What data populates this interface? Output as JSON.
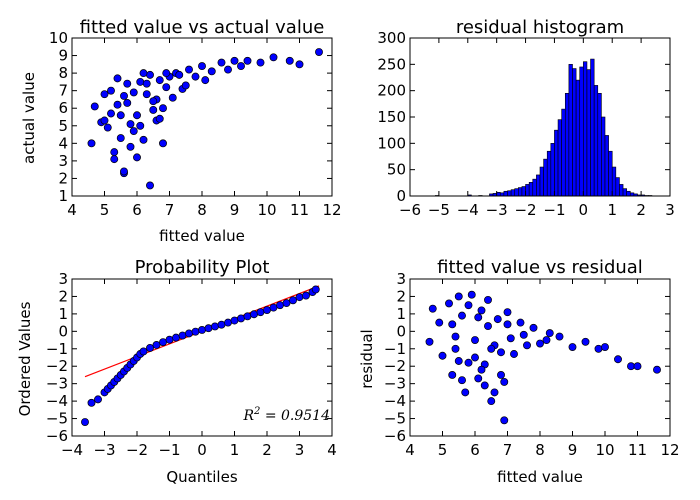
{
  "chart_data": [
    {
      "id": "fitted_vs_actual",
      "type": "scatter",
      "title": "fitted value vs actual value",
      "xlabel": "fitted value",
      "ylabel": "actual value",
      "xlim": [
        4,
        12
      ],
      "ylim": [
        1,
        10
      ],
      "xticks": [
        4,
        5,
        6,
        7,
        8,
        9,
        10,
        11,
        12
      ],
      "yticks": [
        1,
        2,
        3,
        4,
        5,
        6,
        7,
        8,
        9,
        10
      ],
      "x": [
        4.6,
        4.7,
        4.9,
        5.0,
        5.1,
        5.2,
        5.3,
        5.4,
        5.5,
        5.6,
        5.7,
        5.8,
        5.9,
        6.0,
        6.1,
        6.2,
        6.3,
        6.4,
        6.5,
        6.6,
        6.7,
        6.8,
        6.9,
        7.0,
        7.2,
        7.4,
        7.6,
        7.8,
        8.0,
        8.3,
        8.6,
        9.0,
        9.4,
        9.8,
        10.2,
        10.7,
        11.0,
        11.6,
        5.3,
        5.6,
        5.9,
        6.2,
        6.5,
        5.8,
        6.1,
        6.4,
        6.8,
        5.5,
        6.0,
        6.6,
        7.1,
        7.5,
        5.2,
        5.7,
        6.3,
        6.9,
        7.3,
        8.1,
        8.8,
        9.2,
        5.4,
        6.7,
        5.0,
        5.6
      ],
      "y": [
        4.0,
        6.1,
        5.2,
        6.8,
        4.9,
        7.0,
        3.1,
        6.2,
        5.6,
        2.3,
        7.4,
        5.1,
        6.9,
        5.6,
        7.5,
        4.2,
        6.8,
        7.9,
        5.9,
        6.5,
        7.6,
        4.0,
        7.2,
        7.8,
        8.0,
        7.1,
        8.2,
        7.8,
        8.4,
        8.1,
        8.6,
        8.7,
        8.7,
        8.6,
        8.9,
        8.7,
        8.5,
        9.2,
        3.5,
        2.4,
        4.7,
        8.0,
        6.4,
        3.8,
        5.0,
        1.6,
        6.0,
        4.3,
        3.2,
        5.3,
        6.6,
        7.3,
        5.7,
        6.3,
        7.4,
        8.0,
        7.9,
        7.6,
        8.2,
        8.4,
        7.7,
        5.4,
        5.3,
        6.7
      ]
    },
    {
      "id": "residual_histogram",
      "type": "bar",
      "title": "residual histogram",
      "xlim": [
        -6,
        3
      ],
      "ylim": [
        0,
        300
      ],
      "xticks": [
        -6,
        -5,
        -4,
        -3,
        -2,
        -1,
        0,
        1,
        2,
        3
      ],
      "yticks": [
        0,
        50,
        100,
        150,
        200,
        250,
        300
      ],
      "bin_width": 0.125,
      "bin_starts": [
        -5.125,
        -4.0,
        -3.625,
        -3.25,
        -3.125,
        -3.0,
        -2.875,
        -2.75,
        -2.625,
        -2.5,
        -2.375,
        -2.25,
        -2.125,
        -2.0,
        -1.875,
        -1.75,
        -1.625,
        -1.5,
        -1.375,
        -1.25,
        -1.125,
        -1.0,
        -0.875,
        -0.75,
        -0.625,
        -0.5,
        -0.375,
        -0.25,
        -0.125,
        0.0,
        0.125,
        0.25,
        0.375,
        0.5,
        0.625,
        0.75,
        0.875,
        1.0,
        1.125,
        1.25,
        1.375,
        1.5,
        1.625,
        1.75,
        1.875,
        2.0,
        2.125,
        2.25
      ],
      "values": [
        1,
        2,
        1,
        4,
        5,
        7,
        6,
        9,
        10,
        12,
        14,
        16,
        18,
        22,
        26,
        32,
        40,
        55,
        70,
        85,
        100,
        125,
        145,
        165,
        195,
        250,
        242,
        220,
        245,
        255,
        240,
        260,
        210,
        195,
        150,
        115,
        85,
        55,
        35,
        22,
        14,
        9,
        6,
        4,
        2,
        2,
        1,
        1
      ]
    },
    {
      "id": "probability_plot",
      "type": "scatter",
      "title": "Probability Plot",
      "xlabel": "Quantiles",
      "ylabel": "Ordered Values",
      "xlim": [
        -4,
        4
      ],
      "ylim": [
        -6,
        3
      ],
      "xticks": [
        -4,
        -3,
        -2,
        -1,
        0,
        1,
        2,
        3,
        4
      ],
      "yticks": [
        -6,
        -5,
        -4,
        -3,
        -2,
        -1,
        0,
        1,
        2,
        3
      ],
      "annotation": "R^2 = 0.9514",
      "fit_line": {
        "x": [
          -3.6,
          3.6
        ],
        "y": [
          -2.6,
          2.6
        ]
      },
      "x": [
        -3.6,
        -3.4,
        -3.2,
        -3.0,
        -2.9,
        -2.8,
        -2.7,
        -2.6,
        -2.5,
        -2.4,
        -2.3,
        -2.2,
        -2.1,
        -2.0,
        -1.9,
        -1.8,
        -1.6,
        -1.4,
        -1.2,
        -1.0,
        -0.8,
        -0.6,
        -0.4,
        -0.2,
        0.0,
        0.2,
        0.4,
        0.6,
        0.8,
        1.0,
        1.2,
        1.4,
        1.6,
        1.8,
        2.0,
        2.2,
        2.4,
        2.6,
        2.8,
        3.0,
        3.2,
        3.4,
        3.5
      ],
      "y": [
        -5.2,
        -4.1,
        -3.9,
        -3.5,
        -3.3,
        -3.1,
        -2.9,
        -2.7,
        -2.5,
        -2.3,
        -2.1,
        -1.9,
        -1.7,
        -1.5,
        -1.3,
        -1.15,
        -0.95,
        -0.78,
        -0.62,
        -0.48,
        -0.36,
        -0.24,
        -0.12,
        -0.02,
        0.08,
        0.18,
        0.28,
        0.38,
        0.5,
        0.62,
        0.74,
        0.86,
        0.98,
        1.1,
        1.22,
        1.36,
        1.5,
        1.62,
        1.78,
        1.96,
        2.05,
        2.25,
        2.4
      ]
    },
    {
      "id": "fitted_vs_residual",
      "type": "scatter",
      "title": "fitted value vs residual",
      "xlabel": "fitted value",
      "ylabel": "residual",
      "xlim": [
        4,
        12
      ],
      "ylim": [
        -6,
        3
      ],
      "xticks": [
        4,
        5,
        6,
        7,
        8,
        9,
        10,
        11,
        12
      ],
      "yticks": [
        -6,
        -5,
        -4,
        -3,
        -2,
        -1,
        0,
        1,
        2,
        3
      ],
      "x": [
        4.6,
        4.7,
        4.9,
        5.0,
        5.2,
        5.3,
        5.4,
        5.5,
        5.6,
        5.7,
        5.8,
        5.9,
        6.0,
        6.1,
        6.2,
        6.3,
        6.4,
        6.5,
        6.6,
        6.7,
        6.8,
        6.9,
        7.0,
        7.2,
        7.4,
        7.6,
        7.8,
        8.0,
        8.3,
        8.6,
        9.0,
        9.4,
        9.8,
        10.0,
        10.4,
        10.8,
        11.0,
        11.6,
        5.4,
        5.6,
        5.8,
        6.0,
        6.2,
        6.4,
        6.6,
        6.8,
        7.0,
        5.5,
        6.1,
        6.5,
        7.1,
        6.9,
        5.3,
        6.3,
        7.5,
        8.2
      ],
      "y": [
        -0.6,
        1.3,
        0.5,
        -1.4,
        1.6,
        -2.5,
        -1.0,
        2.0,
        0.9,
        -3.5,
        -1.8,
        2.1,
        -0.5,
        -2.7,
        1.2,
        -1.9,
        0.3,
        -4.0,
        -3.5,
        0.7,
        -1.2,
        -5.1,
        0.4,
        -1.3,
        0.5,
        -0.8,
        0.2,
        -0.7,
        -0.1,
        -0.3,
        -0.9,
        -0.6,
        -1.0,
        -0.9,
        -1.6,
        -2.0,
        -2.0,
        -2.2,
        -0.3,
        -2.8,
        1.5,
        -1.5,
        -2.2,
        1.8,
        -0.8,
        -2.5,
        1.1,
        -1.7,
        0.8,
        -1.0,
        -0.4,
        -2.9,
        0.4,
        -3.1,
        -0.2,
        -0.5
      ]
    }
  ]
}
